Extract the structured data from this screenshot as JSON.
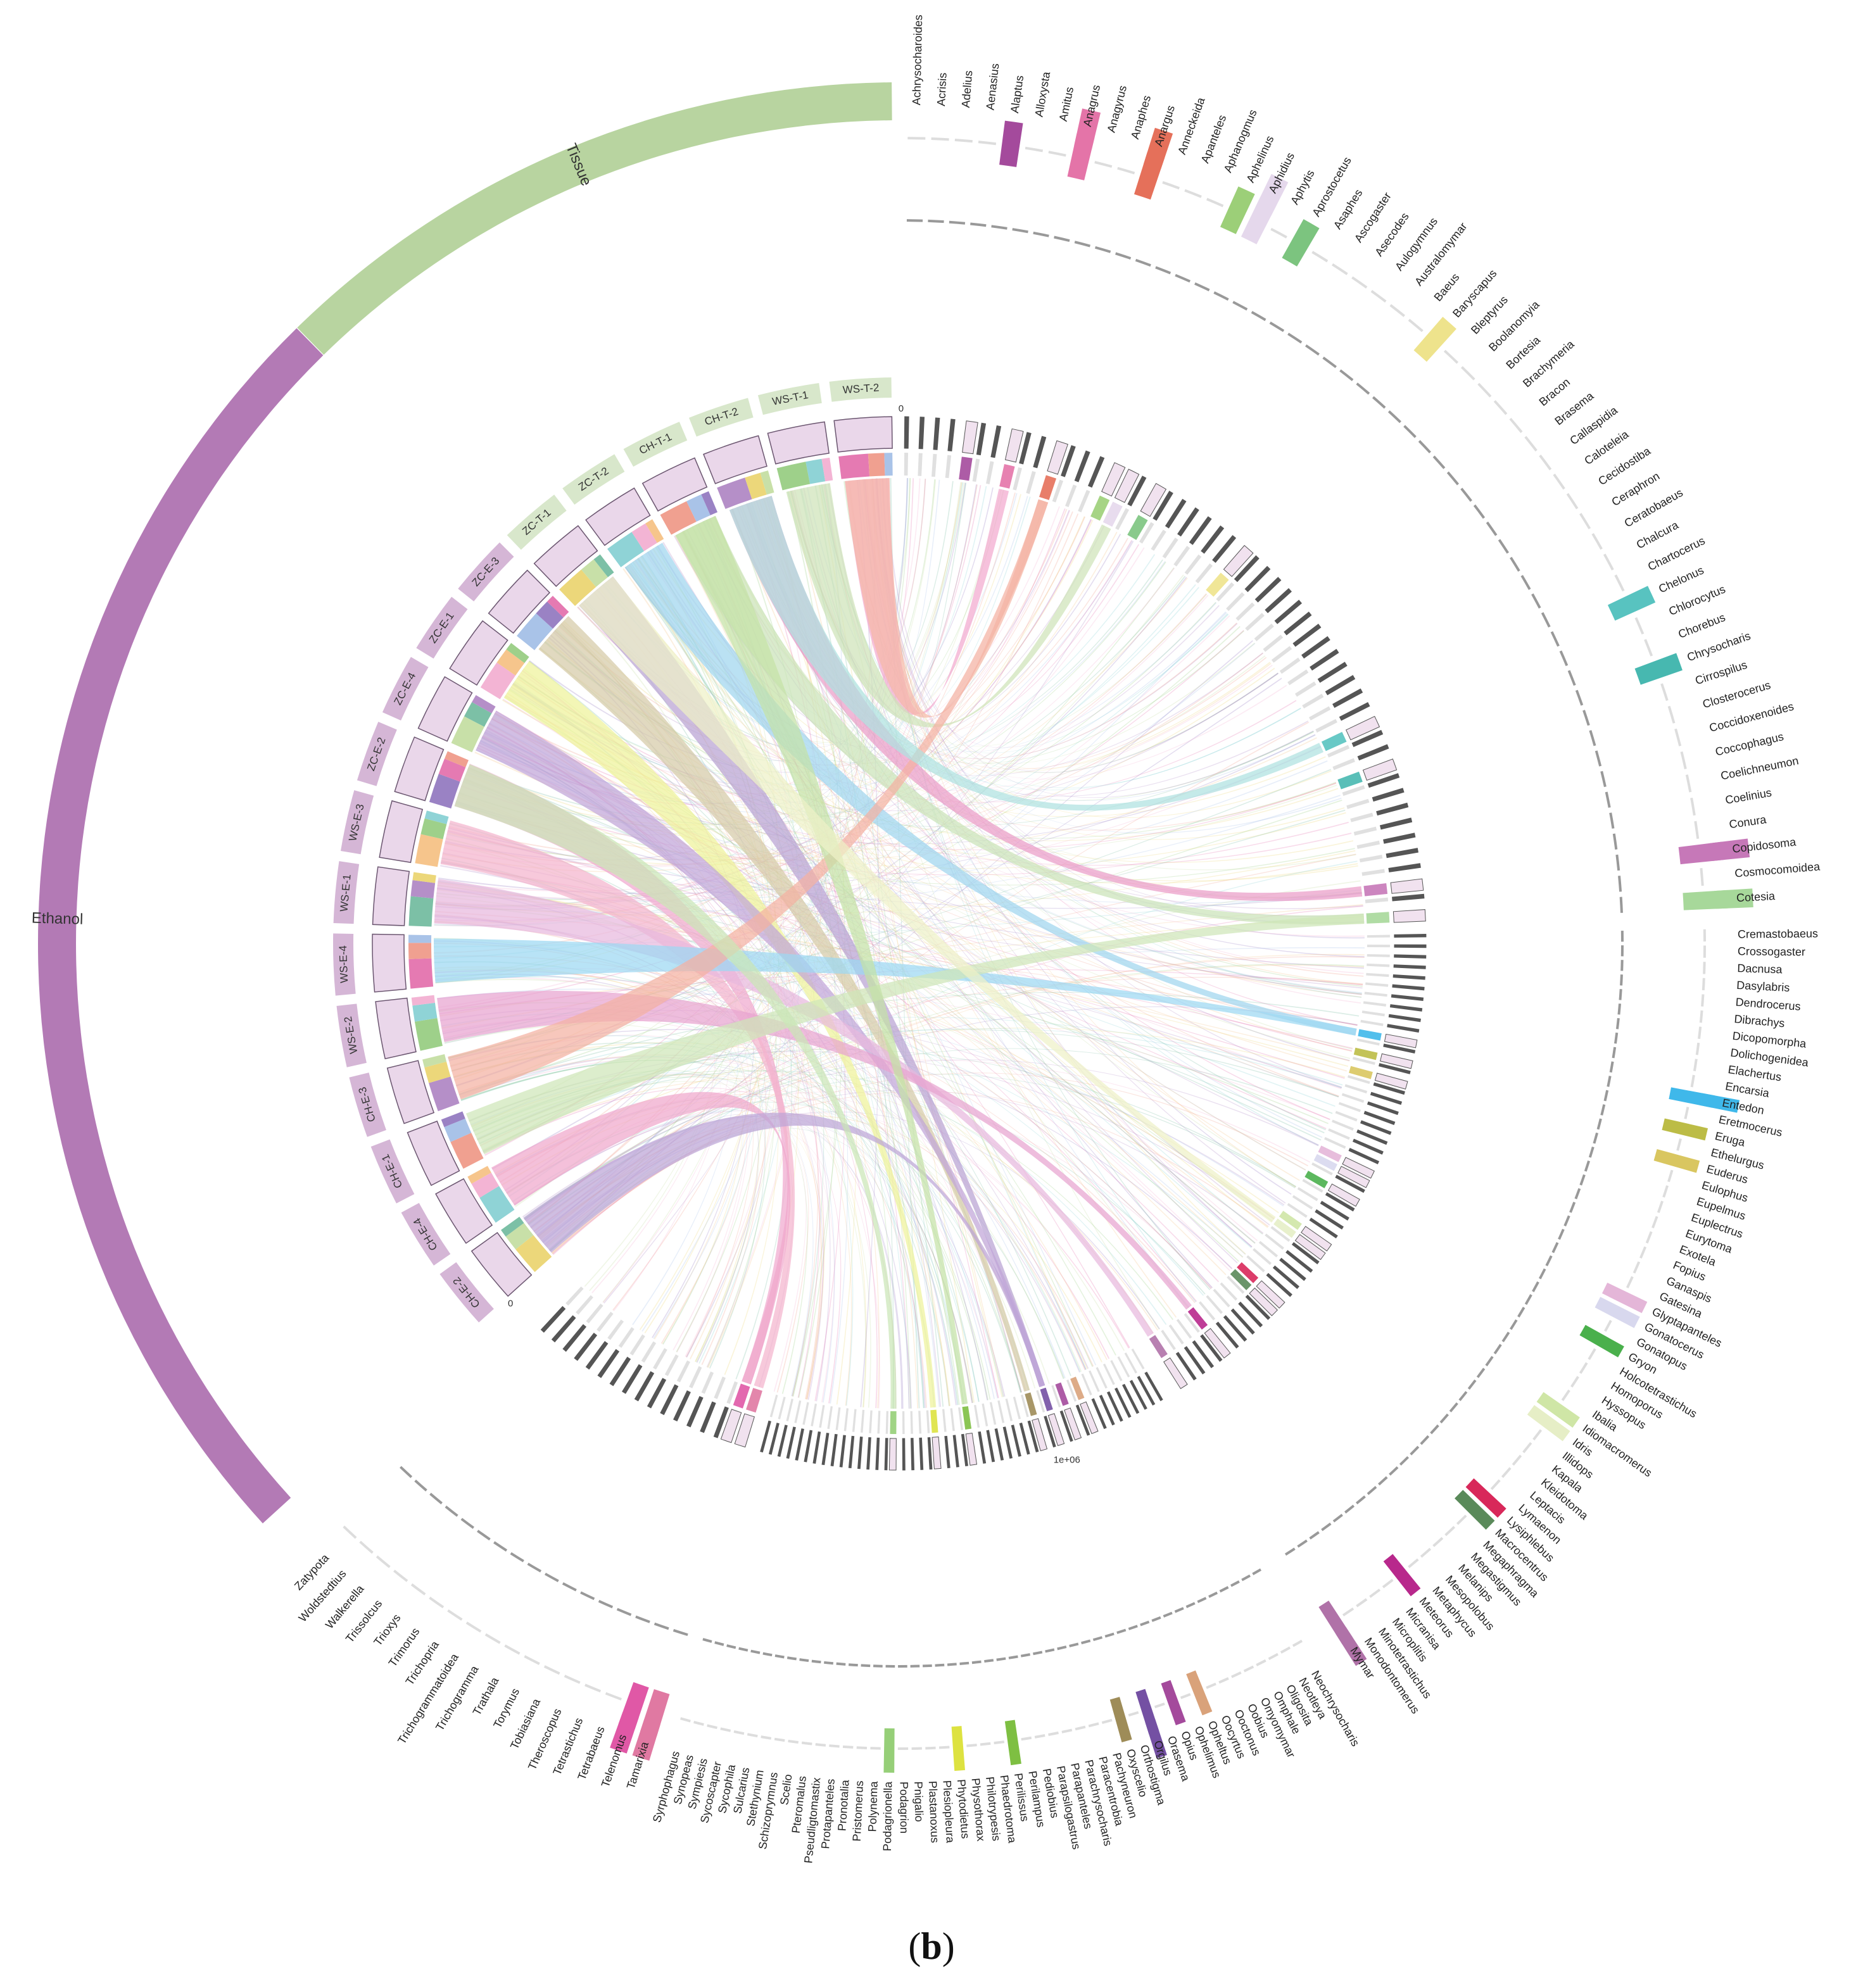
{
  "caption": {
    "open": "(",
    "letter": "b",
    "close": ")"
  },
  "scale_label": "1e+06",
  "groups": [
    {
      "name": "Tissue",
      "color": "#b8d4a0"
    },
    {
      "name": "Ethanol",
      "color": "#b37ab5"
    }
  ],
  "samples": [
    {
      "name": "WS-T-2",
      "color": "#b8d4a0"
    },
    {
      "name": "WS-T-1",
      "color": "#b8d4a0"
    },
    {
      "name": "CH-T-2",
      "color": "#b8d4a0"
    },
    {
      "name": "CH-T-1",
      "color": "#b8d4a0"
    },
    {
      "name": "ZC-T-2",
      "color": "#b8d4a0"
    },
    {
      "name": "ZC-T-1",
      "color": "#b8d4a0"
    },
    {
      "name": "ZC-E-3",
      "color": "#b37ab5"
    },
    {
      "name": "ZC-E-1",
      "color": "#b37ab5"
    },
    {
      "name": "ZC-E-4",
      "color": "#b37ab5"
    },
    {
      "name": "ZC-E-2",
      "color": "#b37ab5"
    },
    {
      "name": "WS-E-3",
      "color": "#b37ab5"
    },
    {
      "name": "WS-E-1",
      "color": "#b37ab5"
    },
    {
      "name": "WS-E-4",
      "color": "#b37ab5"
    },
    {
      "name": "WS-E-2",
      "color": "#b37ab5"
    },
    {
      "name": "CH-E-3",
      "color": "#b37ab5"
    },
    {
      "name": "CH-E-1",
      "color": "#b37ab5"
    },
    {
      "name": "CH-E-4",
      "color": "#b37ab5"
    },
    {
      "name": "CH-E-2",
      "color": "#b37ab5"
    }
  ],
  "genera_top": [
    "Achrysocharoides",
    "Acrisis",
    "Adelius",
    "Aenasius",
    "Alaptus",
    "Alloxysta",
    "Amitus",
    "Anagrus",
    "Anagyrus",
    "Anaphes",
    "Anargus",
    "Anneckeida",
    "Apanteles",
    "Aphanogmus",
    "Aphelinus",
    "Aphidius",
    "Aphytis",
    "Aprostocetus",
    "Asaphes",
    "Ascogaster",
    "Asecodes",
    "Aulogymnus",
    "Australomymar",
    "Baeus",
    "Baryscapus",
    "Bleptyrus",
    "Boolanomyia",
    "Bortesia",
    "Brachymeria",
    "Bracon",
    "Brasema",
    "Callaspidia",
    "Caloteleia",
    "Cecidostiba",
    "Ceraphron",
    "Ceratobaeus",
    "Chalcura",
    "Chartocerus",
    "Chelonus",
    "Chlorocytus",
    "Chorebus",
    "Chrysocharis",
    "Cirrospilus",
    "Closterocerus",
    "Coccidoxenoides",
    "Coccophagus",
    "Coelichneumon",
    "Coelinius",
    "Conura",
    "Copidosoma",
    "Cosmocomoidea",
    "Cotesia"
  ],
  "genera_right": [
    "Cremastobaeus",
    "Crossogaster",
    "Dacnusa",
    "Dasylabris",
    "Dendrocerus",
    "Dibrachys",
    "Dicopomorpha",
    "Dolichogenidea",
    "Elachertus",
    "Encarsia",
    "Entedon",
    "Eretmocerus",
    "Eruga",
    "Ethelurgus",
    "Euderus",
    "Eulophus",
    "Eupelmus",
    "Euplectrus",
    "Eurytoma",
    "Exotela",
    "Fopius",
    "Ganaspis",
    "Gatesina",
    "Glyptapanteles",
    "Gonatocerus",
    "Gonatopus",
    "Gryon",
    "Holcotetrastichus",
    "Homoporus",
    "Hyssopus",
    "Ibalia",
    "Idiomacromerus",
    "Idris",
    "Illidops",
    "Kapala",
    "Kleidotoma",
    "Leptacis",
    "Lymaenon",
    "Lysiphlebus",
    "Macrocentrus",
    "Megaphragma",
    "Megastigmus",
    "Melanips",
    "Mesopolobus",
    "Metaphycus",
    "Meteorus",
    "Micranisa",
    "Microplitis",
    "Minotetrastichus",
    "Monodontomerus",
    "Mymar"
  ],
  "genera_bottom": [
    "Neochrysocharis",
    "Neotleya",
    "Oligosita",
    "Omphale",
    "Omyomymar",
    "Oobius",
    "Ooctonus",
    "Oocyrtus",
    "Opheltus",
    "Ophelimus",
    "Opius",
    "Orasema",
    "Orgilus",
    "Orthostigma",
    "Oxyscelio",
    "Pachyneuron",
    "Paracentrobia",
    "Parachrysocharis",
    "Parapanteles",
    "Parapsilogastrus",
    "Pediobius",
    "Perilampus",
    "Perilissus",
    "Phaedrotoma",
    "Philotrypesis",
    "Physothorax",
    "Phytodietus",
    "Plesiopleura",
    "Plastanoxus",
    "Pnigalio",
    "Podagrion",
    "Podagrionella",
    "Polynema",
    "Pristomerus",
    "Pronotalia",
    "Protapanteles",
    "Pseudligtomastix",
    "Pteromalus",
    "Scelio",
    "Schizoprymnus",
    "Stethynium",
    "Sulcarius",
    "Sycophila",
    "Sycoscapter",
    "Sympiesis",
    "Synopeas",
    "Syrphophagus"
  ],
  "genera_left": [
    "Tamarixia",
    "Telenomus",
    "Tetrabaeus",
    "Tetrastichus",
    "Theroscopus",
    "Tobiasiana",
    "Torymus",
    "Trathala",
    "Trichogramma",
    "Trichogrammatoidea",
    "Trichopria",
    "Trimorus",
    "Trioxys",
    "Trissolcus",
    "Walkerella",
    "Woldstedtius",
    "Zatypota"
  ],
  "highlight": {
    "Alaptus": "#a44a9c",
    "Anagrus": "#e474a8",
    "Anargus": "#e5705a",
    "Aphelinus": "#9ccf78",
    "Aphidius": "#e5d8ec",
    "Aprostocetus": "#7cc47f",
    "Baryscapus": "#eee38c",
    "Chelonus": "#58c3c0",
    "Chrysocharis": "#47b8b0",
    "Copidosoma": "#c678b8",
    "Cotesia": "#a7d89a",
    "Entedon": "#3fb8ea",
    "Eruga": "#bcbc46",
    "Euderus": "#d9c660",
    "Glyptapanteles": "#e4b6d8",
    "Gonatocerus": "#d8d8ee",
    "Gryon": "#4ab04c",
    "Idiomacromerus": "#cfe6a6",
    "Idris": "#e6eec6",
    "Lysiphlebus": "#d8285a",
    "Macrocentrus": "#5a8a5a",
    "Meteorus": "#b8288c",
    "Mymar": "#b072a8",
    "Opheltus": "#d9a27a",
    "Opius": "#a44a9c",
    "Orgilus": "#7450a3",
    "Oxyscelio": "#9e8c58",
    "Perilissus": "#7ebf42",
    "Phytodietus": "#dde240",
    "Podagrionella": "#96cf78",
    "Tamarixia": "#e079a2",
    "Telenomus": "#e058a6"
  }
}
